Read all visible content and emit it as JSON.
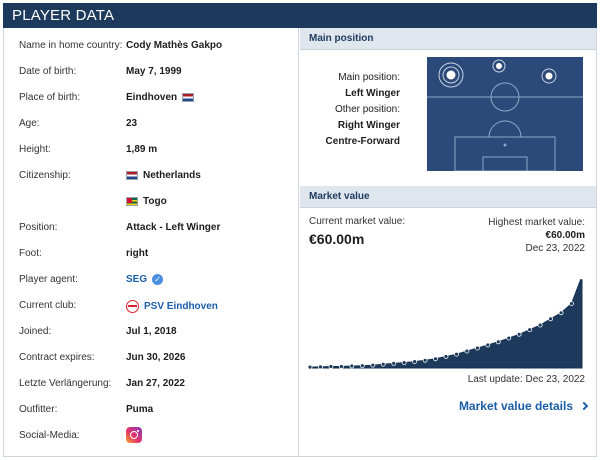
{
  "header": {
    "title": "PLAYER DATA"
  },
  "player": {
    "rows": [
      {
        "label": "Name in home country:",
        "value": "Cody Mathès Gakpo"
      },
      {
        "label": "Date of birth:",
        "value": "May 7, 1999"
      },
      {
        "label": "Place of birth:",
        "value": "Eindhoven",
        "flag": "netherlands-flag"
      },
      {
        "label": "Age:",
        "value": "23"
      },
      {
        "label": "Height:",
        "value": "1,89 m"
      },
      {
        "label": "Citizenship:",
        "value": "Netherlands",
        "flag": "netherlands-flag"
      },
      {
        "label": "",
        "value": "Togo",
        "flag": "togo-flag"
      },
      {
        "label": "Position:",
        "value": "Attack - Left Winger"
      },
      {
        "label": "Foot:",
        "value": "right"
      },
      {
        "label": "Player agent:",
        "value": "SEG",
        "icon": "verified-icon"
      },
      {
        "label": "Current club:",
        "value": "PSV Eindhoven",
        "icon": "club-crest-icon"
      },
      {
        "label": "Joined:",
        "value": "Jul 1, 2018"
      },
      {
        "label": "Contract expires:",
        "value": "Jun 30, 2026"
      },
      {
        "label": "Letzte Verlängerung:",
        "value": "Jan 27, 2022"
      },
      {
        "label": "Outfitter:",
        "value": "Puma"
      },
      {
        "label": "Social-Media:",
        "icon": "instagram-icon"
      }
    ]
  },
  "main_position": {
    "heading": "Main position",
    "main_label": "Main position:",
    "main_value": "Left Winger",
    "other_label": "Other position:",
    "other_values": [
      "Right Winger",
      "Centre-Forward"
    ],
    "pitch_color": "#2b4a7a"
  },
  "market_value": {
    "heading": "Market value",
    "current_label": "Current market value:",
    "current_value": "€60.00m",
    "highest_label": "Highest market value:",
    "highest_value": "€60.00m",
    "highest_date": "Dec 23, 2022",
    "last_update": "Last update: Dec 23, 2022",
    "details_link": "Market value details",
    "colors": {
      "area": "#1d3a5c",
      "accent": "#1b5ea8"
    },
    "trend": [
      0.6,
      0.7,
      1.0,
      1.0,
      1.3,
      1.5,
      1.8,
      2.5,
      3.0,
      3.5,
      4.2,
      5.0,
      6.0,
      7.5,
      9.0,
      11.0,
      13.0,
      15.0,
      17.0,
      19.5,
      22.0,
      25.0,
      28.0,
      32.0,
      36.0,
      42.0,
      60.0
    ]
  }
}
